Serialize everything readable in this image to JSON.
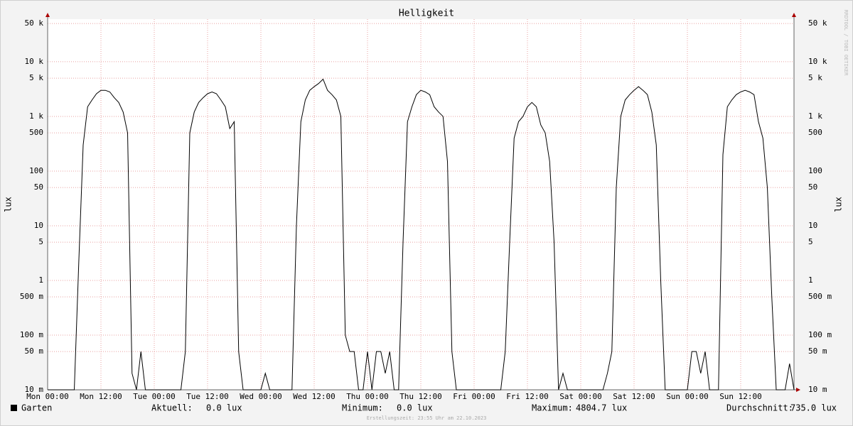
{
  "chart_data": {
    "type": "line",
    "title": "Helligkeit",
    "ylabel": "lux",
    "ylog": true,
    "grid": true,
    "x": [
      0,
      1,
      2,
      3,
      4,
      5,
      6,
      7,
      8,
      9,
      10,
      11,
      12,
      13,
      14,
      15,
      16,
      17,
      18,
      19,
      20,
      21,
      22,
      23,
      24,
      25,
      26,
      27,
      28,
      29,
      30,
      31,
      32,
      33,
      34,
      35,
      36,
      37,
      38,
      39,
      40,
      41,
      42,
      43,
      44,
      45,
      46,
      47,
      48,
      49,
      50,
      51,
      52,
      53,
      54,
      55,
      56,
      57,
      58,
      59,
      60,
      61,
      62,
      63,
      64,
      65,
      66,
      67,
      68,
      69,
      70,
      71,
      72,
      73,
      74,
      75,
      76,
      77,
      78,
      79,
      80,
      81,
      82,
      83,
      84,
      85,
      86,
      87,
      88,
      89,
      90,
      91,
      92,
      93,
      94,
      95,
      96,
      97,
      98,
      99,
      100,
      101,
      102,
      103,
      104,
      105,
      106,
      107,
      108,
      109,
      110,
      111,
      112,
      113,
      114,
      115,
      116,
      117,
      118,
      119,
      120,
      121,
      122,
      123,
      124,
      125,
      126,
      127,
      128,
      129,
      130,
      131,
      132,
      133,
      134,
      135,
      136,
      137,
      138,
      139,
      140,
      141,
      142,
      143,
      144,
      145,
      146,
      147,
      148,
      149,
      150,
      151,
      152,
      153,
      154,
      155,
      156,
      157,
      158,
      159,
      160,
      161,
      162,
      163,
      164,
      165,
      166,
      167,
      168
    ],
    "series": [
      {
        "name": "Garten",
        "color": "#000000",
        "values": [
          0.01,
          0.01,
          0.01,
          0.01,
          0.01,
          0.01,
          0.01,
          2,
          300,
          1500,
          2000,
          2600,
          3000,
          3000,
          2800,
          2200,
          1800,
          1200,
          500,
          0.02,
          0.01,
          0.05,
          0.01,
          0.01,
          0.01,
          0.01,
          0.01,
          0.01,
          0.01,
          0.01,
          0.01,
          0.05,
          500,
          1200,
          1800,
          2200,
          2600,
          2800,
          2600,
          2000,
          1500,
          600,
          800,
          0.05,
          0.01,
          0.01,
          0.01,
          0.01,
          0.01,
          0.02,
          0.01,
          0.01,
          0.01,
          0.01,
          0.01,
          0.01,
          10,
          800,
          2000,
          3000,
          3500,
          4000,
          4800,
          3000,
          2500,
          2000,
          1000,
          0.1,
          0.05,
          0.05,
          0.01,
          0.01,
          0.05,
          0.01,
          0.05,
          0.05,
          0.02,
          0.05,
          0.01,
          0.01,
          5,
          800,
          1500,
          2500,
          3000,
          2800,
          2500,
          1500,
          1200,
          1000,
          150,
          0.05,
          0.01,
          0.01,
          0.01,
          0.01,
          0.01,
          0.01,
          0.01,
          0.01,
          0.01,
          0.01,
          0.01,
          0.05,
          5,
          400,
          800,
          1000,
          1500,
          1800,
          1500,
          700,
          500,
          150,
          5,
          0.01,
          0.02,
          0.01,
          0.01,
          0.01,
          0.01,
          0.01,
          0.01,
          0.01,
          0.01,
          0.01,
          0.02,
          0.05,
          50,
          1000,
          2000,
          2500,
          3000,
          3500,
          3000,
          2500,
          1200,
          300,
          1,
          0.01,
          0.01,
          0.01,
          0.01,
          0.01,
          0.01,
          0.05,
          0.05,
          0.02,
          0.05,
          0.01,
          0.01,
          0.01,
          200,
          1500,
          2000,
          2500,
          2800,
          3000,
          2800,
          2500,
          800,
          400,
          50,
          0.5,
          0.01,
          0.01,
          0.01,
          0.03,
          0.01
        ]
      }
    ],
    "xlim": [
      0,
      168
    ],
    "xticks": [
      {
        "value": 0,
        "label": "Mon 00:00"
      },
      {
        "value": 12,
        "label": "Mon 12:00"
      },
      {
        "value": 24,
        "label": "Tue 00:00"
      },
      {
        "value": 36,
        "label": "Tue 12:00"
      },
      {
        "value": 48,
        "label": "Wed 00:00"
      },
      {
        "value": 60,
        "label": "Wed 12:00"
      },
      {
        "value": 72,
        "label": "Thu 00:00"
      },
      {
        "value": 84,
        "label": "Thu 12:00"
      },
      {
        "value": 96,
        "label": "Fri 00:00"
      },
      {
        "value": 108,
        "label": "Fri 12:00"
      },
      {
        "value": 120,
        "label": "Sat 00:00"
      },
      {
        "value": 132,
        "label": "Sat 12:00"
      },
      {
        "value": 144,
        "label": "Sun 00:00"
      },
      {
        "value": 156,
        "label": "Sun 12:00"
      }
    ],
    "ylim": [
      0.01,
      60000
    ],
    "yticks": [
      {
        "value": 0.01,
        "label": "10 m"
      },
      {
        "value": 0.05,
        "label": "50 m"
      },
      {
        "value": 0.1,
        "label": "100 m"
      },
      {
        "value": 0.5,
        "label": "500 m"
      },
      1,
      5,
      10,
      50,
      100,
      500,
      {
        "value": 1000,
        "label": "1 k"
      },
      {
        "value": 5000,
        "label": "5 k"
      },
      {
        "value": 10000,
        "label": "10 k"
      },
      {
        "value": 50000,
        "label": "50 k"
      }
    ],
    "stats": [
      {
        "label": "Aktuell:",
        "value": "0.0 lux"
      },
      {
        "label": "Minimum:",
        "value": "0.0 lux"
      },
      {
        "label": "Maximum:",
        "value": "4804.7 lux"
      },
      {
        "label": "Durchschnitt:",
        "value": "735.0 lux"
      }
    ],
    "footer": "Erstellungszeit: 23:55 Uhr am 22.10.2023",
    "watermark": "RRDTOOL / TOBI OETIKER"
  }
}
